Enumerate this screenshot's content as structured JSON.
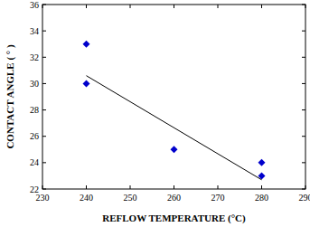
{
  "chart_data": {
    "type": "scatter",
    "xlabel": "REFLOW TEMPERATURE (°C)",
    "ylabel": "CONTACT ANGLE ( ° )",
    "xlim": [
      230,
      290
    ],
    "xticks": [
      230,
      240,
      250,
      260,
      270,
      280,
      290
    ],
    "ylim": [
      22,
      36
    ],
    "yticks": [
      22,
      24,
      26,
      28,
      30,
      32,
      34,
      36
    ],
    "grid": false,
    "series": [
      {
        "type": "scatter",
        "marker": "diamond",
        "color": "#0000cc",
        "x": [
          240,
          240,
          260,
          280,
          280
        ],
        "values": [
          33,
          30,
          25,
          24,
          23
        ]
      },
      {
        "type": "line",
        "line_style": "solid",
        "color": "#000000",
        "x": [
          240,
          280
        ],
        "values": [
          30.6,
          22.7
        ]
      }
    ]
  }
}
